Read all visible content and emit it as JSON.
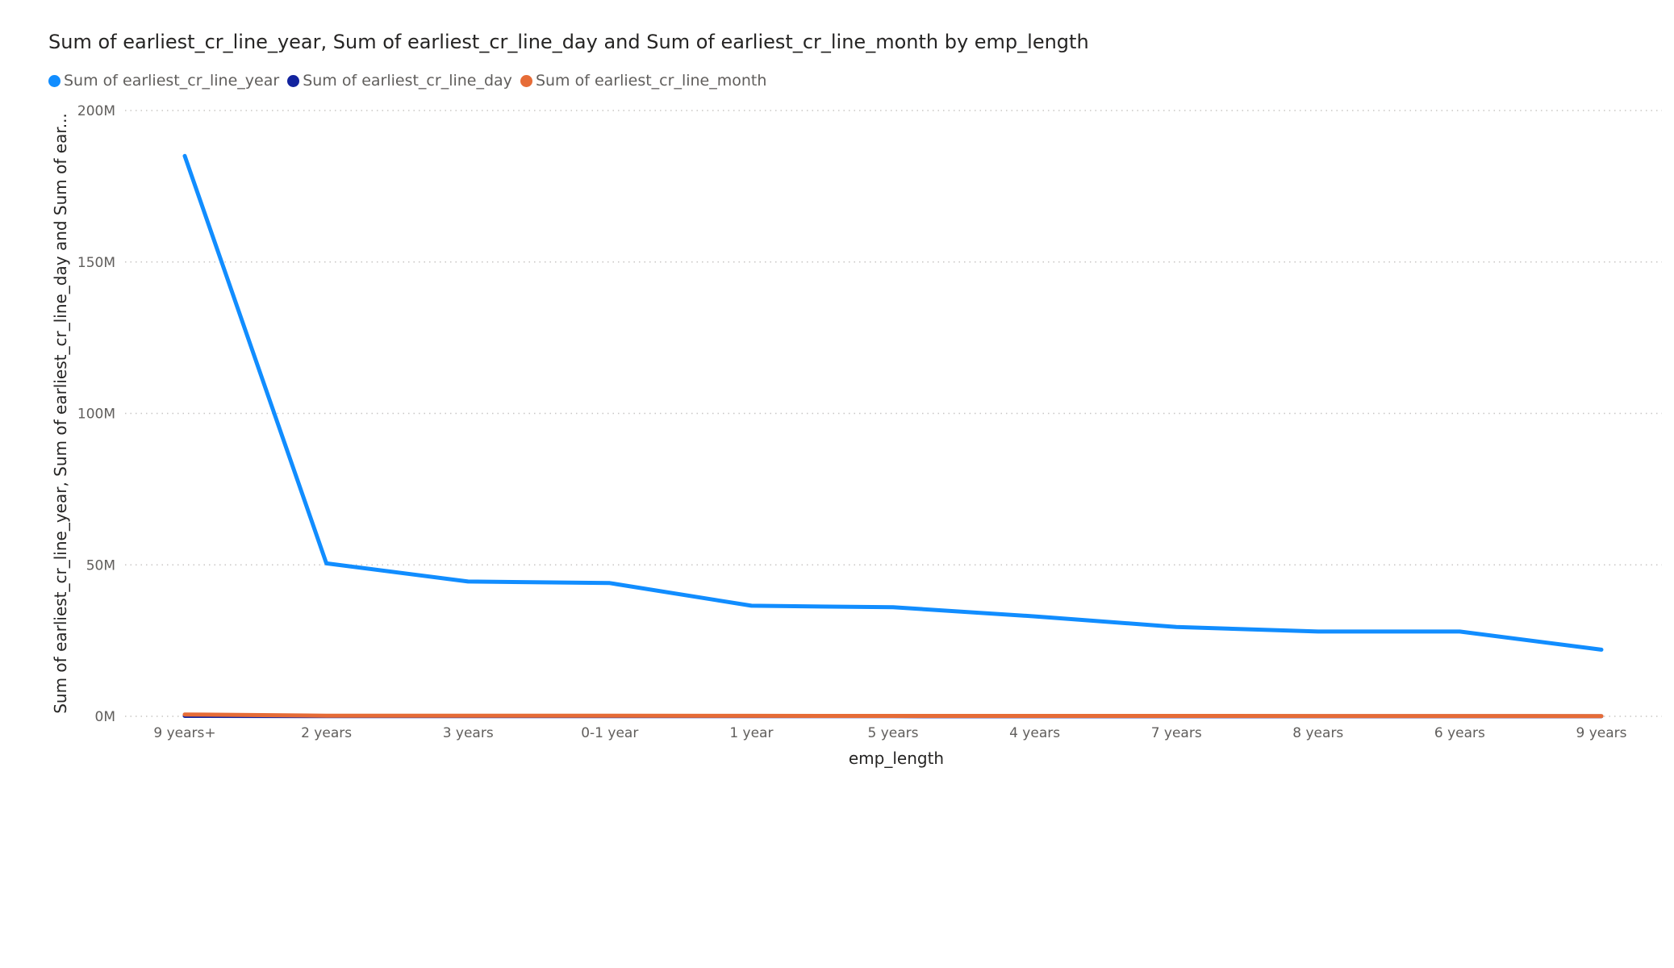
{
  "chart_data": {
    "type": "line",
    "title": "Sum of earliest_cr_line_year, Sum of earliest_cr_line_day and Sum of earliest_cr_line_month by emp_length",
    "xlabel": "emp_length",
    "ylabel": "Sum of earliest_cr_line_year, Sum of earliest_cr_line_day and Sum of ear...",
    "categories": [
      "9 years+",
      "2 years",
      "3 years",
      "0-1 year",
      "1 year",
      "5 years",
      "4 years",
      "7 years",
      "8 years",
      "6 years",
      "9 years"
    ],
    "ylim": [
      0,
      200000000
    ],
    "yticks": [
      {
        "value": 0,
        "label": "0M"
      },
      {
        "value": 50000000,
        "label": "50M"
      },
      {
        "value": 100000000,
        "label": "100M"
      },
      {
        "value": 150000000,
        "label": "150M"
      },
      {
        "value": 200000000,
        "label": "200M"
      }
    ],
    "grid": true,
    "legend_position": "top-left",
    "series": [
      {
        "name": "Sum of earliest_cr_line_year",
        "color": "#118DFF",
        "values": [
          185000000,
          50500000,
          44500000,
          44000000,
          36500000,
          36000000,
          33000000,
          29500000,
          28000000,
          28000000,
          22000000
        ]
      },
      {
        "name": "Sum of earliest_cr_line_day",
        "color": "#12239E",
        "values": [
          120000,
          60000,
          50000,
          50000,
          40000,
          40000,
          35000,
          30000,
          30000,
          30000,
          25000
        ]
      },
      {
        "name": "Sum of earliest_cr_line_month",
        "color": "#E66C37",
        "values": [
          600000,
          200000,
          180000,
          180000,
          150000,
          140000,
          130000,
          120000,
          110000,
          110000,
          90000
        ]
      }
    ]
  }
}
